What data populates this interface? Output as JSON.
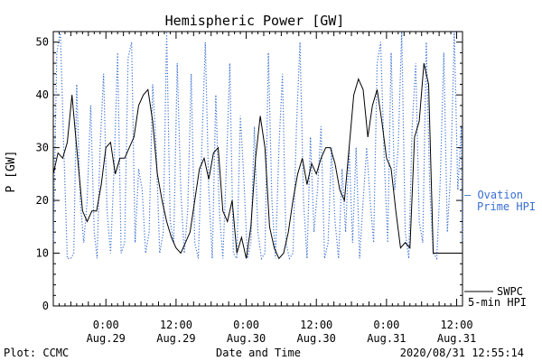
{
  "chart_data": {
    "type": "line",
    "title": "Hemispheric Power [GW]",
    "ylabel": "P [GW]",
    "xlabel": "Date and Time",
    "ylim": [
      0,
      52
    ],
    "yticks": [
      0,
      10,
      20,
      30,
      40,
      50
    ],
    "xlim_hours_from_aug28_1500": [
      0,
      70
    ],
    "xticks": [
      {
        "time": "0:00",
        "date": "Aug.29",
        "hour": 9
      },
      {
        "time": "12:00",
        "date": "Aug.29",
        "hour": 21
      },
      {
        "time": "0:00",
        "date": "Aug.30",
        "hour": 33
      },
      {
        "time": "12:00",
        "date": "Aug.30",
        "hour": 45
      },
      {
        "time": "0:00",
        "date": "Aug.31",
        "hour": 57
      },
      {
        "time": "12:00",
        "date": "Aug.31",
        "hour": 69
      }
    ],
    "series": [
      {
        "name": "Ovation Prime HPI",
        "color": "#3a6fd0",
        "style": "dotted",
        "legend_lines": [
          "— Ovation",
          "Prime HPI"
        ],
        "x": [
          0,
          0.6,
          1.2,
          1.8,
          2.4,
          3,
          3.5,
          4,
          4.6,
          5.2,
          5.8,
          6.4,
          7,
          7.5,
          8,
          8.6,
          9.2,
          9.8,
          10.4,
          11,
          11.6,
          12.2,
          12.8,
          13.4,
          14,
          14.6,
          15.2,
          15.8,
          16.4,
          17,
          17.6,
          18.2,
          18.8,
          19.4,
          20,
          20.6,
          21.2,
          21.8,
          22.4,
          23,
          23.6,
          24.2,
          24.8,
          25.4,
          26,
          26.6,
          27.2,
          27.8,
          28.4,
          29,
          29.6,
          30.2,
          30.8,
          31.4,
          32,
          32.6,
          33.2,
          33.8,
          34.4,
          35,
          35.6,
          36.2,
          36.8,
          37.4,
          38,
          38.6,
          39.2,
          39.8,
          40.4,
          41,
          41.6,
          42.2,
          42.8,
          43.4,
          44,
          44.6,
          45.2,
          45.8,
          46.4,
          47,
          47.6,
          48.2,
          48.8,
          49.4,
          50,
          50.6,
          51.2,
          51.8,
          52.4,
          53,
          53.6,
          54.2,
          54.8,
          55.4,
          56,
          56.6,
          57.2,
          57.8,
          58.4,
          59,
          59.6,
          60.2,
          60.8,
          61.4,
          62,
          62.6,
          63.2,
          63.8,
          64.4,
          65,
          65.6,
          66.2,
          66.8,
          67.4,
          68,
          68.6,
          69.2,
          69.8,
          70
        ],
        "y": [
          12,
          48,
          52,
          30,
          9,
          9,
          10,
          42,
          20,
          12,
          20,
          38,
          14,
          9,
          30,
          44,
          18,
          10,
          26,
          48,
          10,
          12,
          47,
          50,
          12,
          26,
          22,
          10,
          14,
          42,
          30,
          10,
          14,
          52,
          16,
          12,
          46,
          22,
          10,
          18,
          44,
          12,
          9,
          30,
          50,
          22,
          9,
          40,
          18,
          9,
          26,
          46,
          10,
          9,
          36,
          24,
          9,
          12,
          34,
          14,
          9,
          10,
          48,
          20,
          9,
          30,
          44,
          12,
          9,
          10,
          34,
          50,
          20,
          9,
          32,
          14,
          22,
          34,
          9,
          12,
          30,
          16,
          9,
          26,
          14,
          30,
          12,
          30,
          9,
          20,
          30,
          20,
          12,
          46,
          50,
          28,
          12,
          48,
          22,
          30,
          52,
          14,
          9,
          34,
          46,
          16,
          12,
          50,
          22,
          10,
          9,
          24,
          48,
          14,
          26,
          52,
          22,
          34,
          12
        ]
      },
      {
        "name": "SWPC 5-min HPI",
        "color": "#000000",
        "style": "solid",
        "legend_lines": [
          "SWPC",
          "5-min HPI"
        ],
        "x": [
          0,
          0.8,
          1.6,
          2.4,
          3.2,
          4,
          4.5,
          5,
          5.8,
          6.6,
          7.4,
          8.2,
          9,
          9.8,
          10.6,
          11.4,
          12.2,
          13,
          13.8,
          14.6,
          15.4,
          16.2,
          17,
          17.8,
          18.6,
          19.4,
          20.2,
          21,
          21.8,
          22.6,
          23.4,
          24.2,
          25,
          25.8,
          26.6,
          27.4,
          28.2,
          29,
          29.8,
          30.6,
          31.4,
          32.2,
          33,
          33.8,
          34.6,
          35.4,
          36.2,
          37,
          37.8,
          38.6,
          39.4,
          40.2,
          41,
          41.8,
          42.6,
          43.4,
          44.2,
          45,
          45.8,
          46.6,
          47.4,
          48.2,
          49,
          49.8,
          50.6,
          51.4,
          52.2,
          53,
          53.8,
          54.6,
          55.4,
          56.2,
          57,
          57.8,
          58.6,
          59.4,
          60.2,
          61,
          61.8,
          62.6,
          63.4,
          64.2,
          65,
          65.8,
          66.6,
          67.4,
          68.2,
          69,
          69.5,
          70
        ],
        "y": [
          25,
          29,
          28,
          31,
          40,
          30,
          24,
          18,
          16,
          18,
          18,
          23,
          30,
          31,
          25,
          28,
          28,
          30,
          32,
          38,
          40,
          41,
          35,
          25,
          20,
          16,
          13,
          11,
          10,
          12,
          14,
          20,
          26,
          28,
          24,
          29,
          30,
          18,
          16,
          20,
          10,
          13,
          9,
          15,
          28,
          36,
          30,
          15,
          11,
          9,
          10,
          14,
          20,
          25,
          28,
          23,
          27,
          25,
          28,
          30,
          30,
          27,
          22,
          20,
          30,
          40,
          43,
          41,
          32,
          38,
          41,
          35,
          28,
          26,
          18,
          11,
          12,
          11,
          32,
          35,
          46,
          42,
          10,
          10,
          10,
          10,
          10,
          10,
          10,
          10
        ]
      }
    ],
    "footer": {
      "left": "Plot: CCMC",
      "center": "Date and Time",
      "right": "2020/08/31 12:55:14"
    }
  }
}
